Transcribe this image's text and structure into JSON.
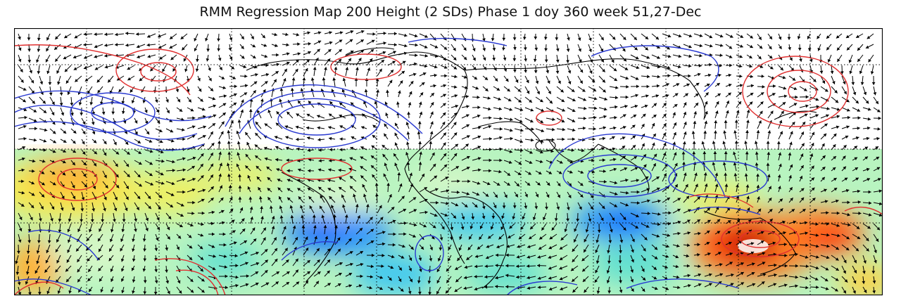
{
  "title": "RMM Regression Map 200 Height (2 SDs) Phase 1 doy 360 week 51,27-Dec",
  "colors": {
    "positive_contour": "#e03030",
    "negative_contour": "#2a3ad0",
    "vector": "#000000",
    "coast": "#000000",
    "shading_scale": [
      "#0050ff",
      "#20a0ff",
      "#60e0d0",
      "#a0f0b0",
      "#d8f8c8",
      "#f0f060",
      "#ffb020",
      "#ff5010",
      "#c00000"
    ]
  },
  "map": {
    "projection": "cylindrical",
    "longitude_range": [
      0,
      360
    ],
    "latitude_range": [
      -40,
      80
    ],
    "graticule": "dotted"
  }
}
